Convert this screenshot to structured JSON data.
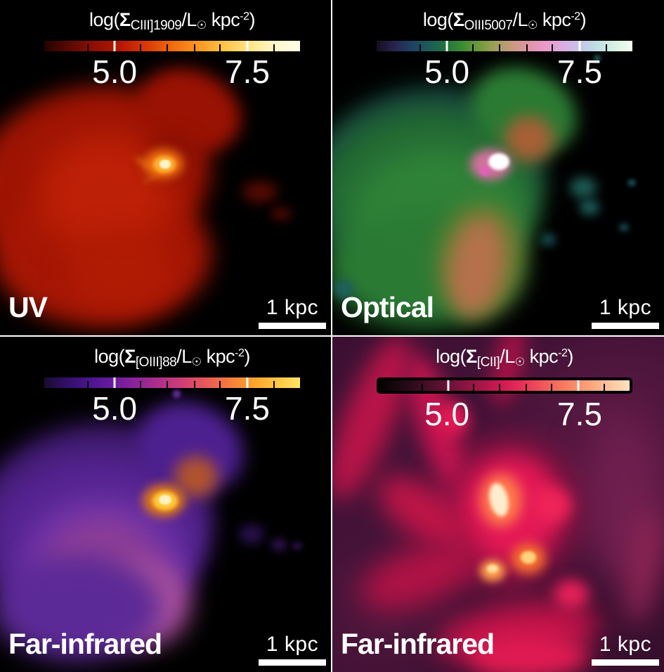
{
  "figure": {
    "layout": "2x2 emission-line surface brightness maps",
    "gutter_color": "#ffffff",
    "text_color": "#ffffff"
  },
  "chart_data": [
    {
      "type": "heatmap",
      "title": "UV — CIII]1909 surface brightness map",
      "colorbar_label": "log(Σ CIII]1909 / L☉ kpc⁻²)",
      "colorbar_ticks": [
        5.0,
        7.5
      ],
      "colorbar_range_est": [
        3.7,
        8.5
      ],
      "colormap_style": "dark red → red → orange → yellow → white",
      "scale_bar": "1 kpc"
    },
    {
      "type": "heatmap",
      "title": "Optical — OIII5007 surface brightness map",
      "colorbar_label": "log(Σ OIII5007 / L☉ kpc⁻²)",
      "colorbar_ticks": [
        5.0,
        7.5
      ],
      "colorbar_range_est": [
        3.7,
        8.5
      ],
      "colormap_style": "cubehelix: dark purple → teal → green → tan → pink → lavender → pale white",
      "scale_bar": "1 kpc"
    },
    {
      "type": "heatmap",
      "title": "Far-infrared — [OIII]88 surface brightness map",
      "colorbar_label": "log(Σ [OIII]88 / L☉ kpc⁻²)",
      "colorbar_ticks": [
        5.0,
        7.5
      ],
      "colorbar_range_est": [
        3.7,
        8.5
      ],
      "colormap_style": "dark indigo → purple → magenta → orange → yellow",
      "scale_bar": "1 kpc"
    },
    {
      "type": "heatmap",
      "title": "Far-infrared — [CII] surface brightness map",
      "colorbar_label": "log(Σ [CII] / L☉ kpc⁻²)",
      "colorbar_ticks": [
        5.0,
        7.5
      ],
      "colorbar_range_est": [
        3.7,
        8.5
      ],
      "colormap_style": "black → maroon → crimson → salmon → cream",
      "scale_bar": "1 kpc"
    }
  ],
  "panels": [
    {
      "id": "uv",
      "band_label": "UV",
      "scale_label": "1 kpc",
      "colorbar": {
        "label": {
          "pre": "log(",
          "sigma": "Σ",
          "line": "CIII]1909",
          "mid": "/L",
          "sun": "☉",
          "unit": " kpc",
          "sup": "-2",
          "post": ")"
        },
        "tick_labels": [
          "5.0",
          "7.5"
        ],
        "ticks_pos": {
          "major": [
            27.5,
            79.4
          ],
          "minor": [
            17.1,
            37.6,
            48.1,
            58.8,
            68.7,
            89.8
          ]
        },
        "colormap": [
          "#230300",
          "#5c0900",
          "#8f1000",
          "#b81700",
          "#d93a05",
          "#ef6a10",
          "#fb9622",
          "#ffc247",
          "#ffe387",
          "#fff6c8",
          "#fffde8"
        ]
      }
    },
    {
      "id": "optical",
      "band_label": "Optical",
      "scale_label": "1 kpc",
      "colorbar": {
        "label": {
          "pre": "log(",
          "sigma": "Σ",
          "line": "OIII5007",
          "mid": "/L",
          "sun": "☉",
          "unit": " kpc",
          "sup": "-2",
          "post": ")"
        },
        "tick_labels": [
          "5.0",
          "7.5"
        ],
        "ticks_pos": {
          "major": [
            27.5,
            79.4
          ],
          "minor": [
            17.1,
            37.6,
            48.1,
            58.8,
            68.7,
            89.8
          ]
        },
        "colormap": [
          "#150e20",
          "#27224c",
          "#1f3f63",
          "#1d5a5c",
          "#20713f",
          "#3d8a33",
          "#6f9a3d",
          "#a39f5c",
          "#c89a82",
          "#e094ab",
          "#eb9bcd",
          "#d9aee3",
          "#c2c6ea",
          "#c0dfe3",
          "#d8f3e2",
          "#f2fdf0"
        ]
      }
    },
    {
      "id": "fir-oiii88",
      "band_label": "Far-infrared",
      "scale_label": "1 kpc",
      "colorbar": {
        "label": {
          "pre": "log(",
          "sigma": "Σ",
          "line": "[OIII]88",
          "mid": "/L",
          "sun": "☉",
          "unit": " kpc",
          "sup": "-2",
          "post": ")"
        },
        "tick_labels": [
          "5.0",
          "7.5"
        ],
        "ticks_pos": {
          "major": [
            27.5,
            79.4
          ],
          "minor": [
            17.1,
            37.6,
            48.1,
            58.8,
            68.7,
            89.8
          ]
        },
        "colormap": [
          "#190b2f",
          "#32106a",
          "#4d1590",
          "#6b1b9e",
          "#8f249a",
          "#b23089",
          "#d13f73",
          "#e85a58",
          "#f67d3c",
          "#fca32c",
          "#ffc543",
          "#ffe566"
        ]
      }
    },
    {
      "id": "fir-cii",
      "band_label": "Far-infrared",
      "scale_label": "1 kpc",
      "colorbar": {
        "label": {
          "pre": "log(",
          "sigma": "Σ",
          "line": "[CII]",
          "mid": "/L",
          "sun": "☉",
          "unit": " kpc",
          "sup": "-2",
          "post": ")"
        },
        "tick_labels": [
          "5.0",
          "7.5"
        ],
        "ticks_pos": {
          "major": [
            27.5,
            79.4
          ],
          "minor": [
            17.1,
            37.6,
            48.1,
            58.8,
            68.7,
            89.8
          ]
        },
        "colormap": [
          "#030203",
          "#1d0911",
          "#3c0d23",
          "#5f1133",
          "#851440",
          "#ad164b",
          "#d31b54",
          "#ea3559",
          "#f25d5a",
          "#f77f63",
          "#faa179",
          "#fcc39a",
          "#fee2c2"
        ]
      }
    }
  ]
}
